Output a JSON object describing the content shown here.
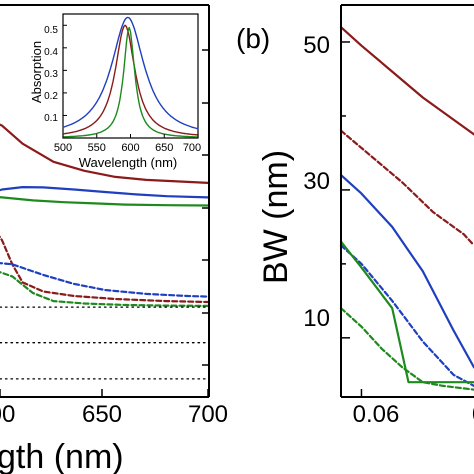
{
  "chart_data": [
    {
      "type": "line",
      "xlabel": "gth (nm)",
      "xlim": [
        575,
        700
      ],
      "xticks": [
        "00",
        "650",
        "700"
      ],
      "series": [
        {
          "color": "#8b1a1a",
          "style": "solid",
          "x": [
            575,
            590,
            600,
            610,
            625,
            640,
            655,
            670,
            685,
            700
          ],
          "y": [
            0.62,
            0.73,
            0.7,
            0.64,
            0.58,
            0.55,
            0.53,
            0.52,
            0.515,
            0.51
          ]
        },
        {
          "color": "#1f3fbf",
          "style": "solid",
          "x": [
            575,
            590,
            600,
            610,
            620,
            635,
            650,
            665,
            680,
            700
          ],
          "y": [
            0.44,
            0.468,
            0.488,
            0.496,
            0.495,
            0.488,
            0.48,
            0.472,
            0.466,
            0.462
          ]
        },
        {
          "color": "#1e8a1e",
          "style": "solid",
          "x": [
            575,
            590,
            600,
            615,
            630,
            645,
            660,
            680,
            700
          ],
          "y": [
            0.44,
            0.468,
            0.462,
            0.452,
            0.446,
            0.442,
            0.438,
            0.436,
            0.435
          ]
        },
        {
          "color": "#8b1a1a",
          "style": "dashed",
          "x": [
            575,
            590,
            600,
            605,
            610,
            620,
            635,
            655,
            680,
            700
          ],
          "y": [
            0.28,
            0.42,
            0.32,
            0.24,
            0.18,
            0.15,
            0.135,
            0.125,
            0.118,
            0.115
          ]
        },
        {
          "color": "#1f3fbf",
          "style": "dashed",
          "x": [
            575,
            590,
            605,
            620,
            635,
            650,
            670,
            690,
            700
          ],
          "y": [
            0.22,
            0.25,
            0.24,
            0.205,
            0.175,
            0.155,
            0.142,
            0.135,
            0.133
          ]
        },
        {
          "color": "#1e8a1e",
          "style": "dashed",
          "x": [
            575,
            590,
            605,
            615,
            625,
            640,
            660,
            680,
            700
          ],
          "y": [
            0.2,
            0.235,
            0.2,
            0.145,
            0.118,
            0.11,
            0.105,
            0.103,
            0.102
          ]
        },
        {
          "color": "#000000",
          "style": "dotted",
          "x": [
            575,
            700
          ],
          "y": [
            0.098,
            0.098
          ]
        },
        {
          "color": "#000000",
          "style": "dotted",
          "x": [
            575,
            700
          ],
          "y": [
            -0.02,
            -0.02
          ]
        },
        {
          "color": "#000000",
          "style": "dotted",
          "x": [
            575,
            700
          ],
          "y": [
            -0.14,
            -0.14
          ]
        }
      ],
      "inset": {
        "type": "line",
        "xlabel": "Wavelength (nm)",
        "ylabel": "Absorption",
        "xlim": [
          500,
          700
        ],
        "ylim": [
          0,
          0.55
        ],
        "xticks": [
          "500",
          "550",
          "600",
          "650",
          "700"
        ],
        "yticks": [
          "0.1",
          "0.2",
          "0.3",
          "0.4",
          "0.5"
        ],
        "series": [
          {
            "color": "#1f3fbf",
            "center": 596,
            "peak": 0.535,
            "width": 30
          },
          {
            "color": "#8b1a1a",
            "center": 592,
            "peak": 0.5,
            "width": 18
          },
          {
            "color": "#1e8a1e",
            "center": 598,
            "peak": 0.49,
            "width": 10
          }
        ]
      }
    },
    {
      "type": "line",
      "panel_label": "(b)",
      "ylabel": "BW (nm)",
      "ylim": [
        2,
        55
      ],
      "yticks": [
        "10",
        "30",
        "50"
      ],
      "xlim": [
        0.05,
        0.115
      ],
      "xticks": [
        "0.06",
        "0"
      ],
      "series": [
        {
          "color": "#8b1a1a",
          "style": "solid",
          "x": [
            0.05,
            0.06,
            0.075,
            0.09,
            0.105,
            0.115
          ],
          "y": [
            52,
            49.5,
            46,
            42.5,
            39.5,
            37.5
          ]
        },
        {
          "color": "#8b1a1a",
          "style": "dashed",
          "x": [
            0.05,
            0.065,
            0.08,
            0.095,
            0.11,
            0.115
          ],
          "y": [
            38,
            34.5,
            31,
            27,
            24,
            22.5
          ]
        },
        {
          "color": "#1f3fbf",
          "style": "solid",
          "x": [
            0.05,
            0.06,
            0.075,
            0.09,
            0.105,
            0.115
          ],
          "y": [
            32,
            29.5,
            25,
            19,
            11,
            6
          ]
        },
        {
          "color": "#1f3fbf",
          "style": "dashed",
          "x": [
            0.05,
            0.06,
            0.075,
            0.09,
            0.105,
            0.115
          ],
          "y": [
            22.5,
            20,
            15,
            9.5,
            5,
            3.5
          ]
        },
        {
          "color": "#1e8a1e",
          "style": "solid",
          "x": [
            0.05,
            0.06,
            0.075,
            0.083,
            0.09,
            0.115
          ],
          "y": [
            23,
            19.5,
            14,
            4,
            4,
            4
          ]
        },
        {
          "color": "#1e8a1e",
          "style": "dashed",
          "x": [
            0.05,
            0.06,
            0.07,
            0.08,
            0.09,
            0.1,
            0.115
          ],
          "y": [
            14,
            11.5,
            8.5,
            6,
            4,
            3.5,
            3
          ]
        }
      ]
    }
  ]
}
